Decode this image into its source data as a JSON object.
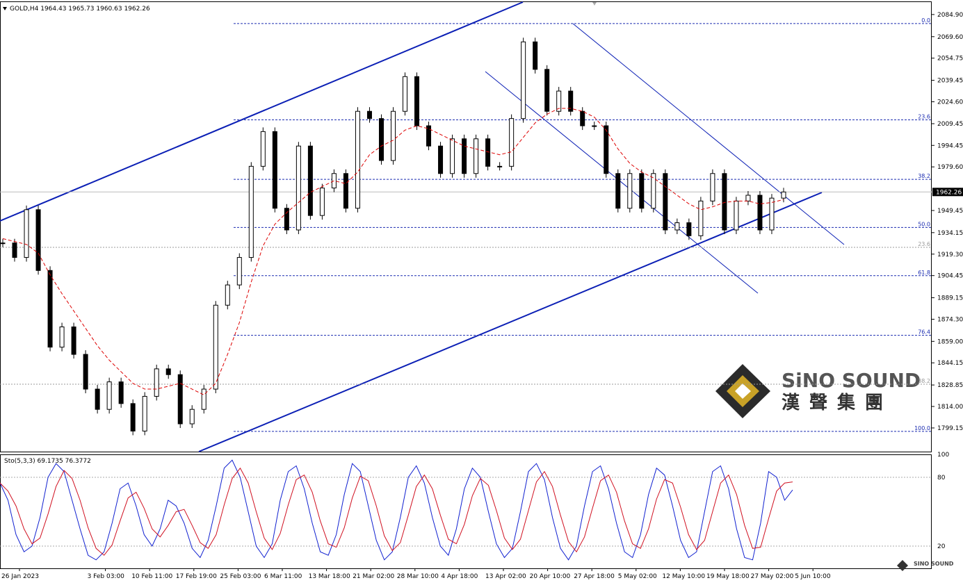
{
  "header": {
    "title": "GOLD,H4  1964.43 1965.73 1960.63 1962.26"
  },
  "price_chart": {
    "ylim": [
      1782.8,
      2093.5
    ],
    "yticks": [
      {
        "value": 2084.9,
        "label": "2084.90"
      },
      {
        "value": 2069.6,
        "label": "2069.60"
      },
      2054.75,
      2039.45,
      {
        "value": 2024.6,
        "label": "2024.60"
      },
      2009.45,
      1994.45,
      {
        "value": 1979.6,
        "label": "1979.60"
      },
      1949.45,
      1934.15,
      {
        "value": 1919.3,
        "label": "1919.30"
      },
      1904.45,
      1889.15,
      {
        "value": 1874.3,
        "label": "1874.30"
      },
      {
        "value": 1859.0,
        "label": "1859.00"
      },
      1844.15,
      1828.85,
      {
        "value": 1814.0,
        "label": "1814.00"
      },
      1799.15
    ],
    "current_price": 1962.26,
    "closes": [
      1927,
      1917,
      1950,
      1908,
      1855,
      1869,
      1850,
      1826,
      1812,
      1831,
      1816,
      1797,
      1821,
      1840,
      1836,
      1802,
      1812,
      1826,
      1884,
      1898,
      1917,
      1980,
      2004,
      1951,
      1936,
      1994,
      1946,
      1965,
      1975,
      1951,
      2018,
      2013,
      1984,
      2018,
      2042,
      2008,
      1994,
      1975,
      1999,
      1975,
      1999,
      1980,
      1980,
      2013,
      2066,
      2047,
      2018,
      2032,
      2018,
      2008,
      2008,
      1975,
      1951,
      1975,
      1951,
      1975,
      1936,
      1941,
      1932,
      1956,
      1975,
      1936,
      1956,
      1960,
      1936,
      1958,
      1962.26
    ],
    "ma": [
      1930,
      1928,
      1926,
      1920,
      1905,
      1892,
      1880,
      1868,
      1856,
      1846,
      1838,
      1830,
      1826,
      1826,
      1828,
      1830,
      1826,
      1822,
      1830,
      1850,
      1872,
      1900,
      1925,
      1940,
      1948,
      1955,
      1962,
      1966,
      1970,
      1968,
      1976,
      1988,
      1994,
      1998,
      2005,
      2008,
      2006,
      2002,
      1998,
      1994,
      1992,
      1990,
      1988,
      1990,
      2000,
      2010,
      2016,
      2020,
      2020,
      2018,
      2014,
      2005,
      1992,
      1982,
      1976,
      1972,
      1966,
      1960,
      1954,
      1950,
      1952,
      1955,
      1956,
      1956,
      1954,
      1955,
      1957
    ],
    "fib_levels": [
      {
        "label": "0.0",
        "price": 2078.7
      },
      {
        "label": "23.6",
        "price": 2012.1
      },
      {
        "label": "38.2",
        "price": 1971.0
      },
      {
        "label": "50.0",
        "price": 1937.7
      },
      {
        "label": "61.8",
        "price": 1904.4
      },
      {
        "label": "76.4",
        "price": 1863.2
      },
      {
        "label": "100.0",
        "price": 1796.8
      }
    ],
    "fib_levels_grey": [
      {
        "label": "23.6",
        "price": 1924.0
      },
      {
        "label": "38.2",
        "price": 1829.4
      }
    ]
  },
  "time_labels": [
    "26 Jan 2023",
    "3 Feb 03:00",
    "10 Feb 11:00",
    "17 Feb 19:00",
    "25 Feb 03:00",
    "6 Mar 11:00",
    "13 Mar 18:00",
    "21 Mar 02:00",
    "28 Mar 10:00",
    "4 Apr 18:00",
    "13 Apr 02:00",
    "20 Apr 10:00",
    "27 Apr 18:00",
    "5 May 02:00",
    "12 May 10:00",
    "19 May 18:00",
    "27 May 02:00",
    "5 Jun 10:00"
  ],
  "stochastic": {
    "title": "Sto(5,3,3) 69.1735 76.3772",
    "ylim": [
      0,
      100
    ],
    "yticks": [
      100,
      80,
      20
    ],
    "k": [
      75,
      60,
      30,
      15,
      20,
      45,
      80,
      92,
      85,
      60,
      35,
      12,
      8,
      15,
      40,
      70,
      75,
      55,
      30,
      20,
      35,
      60,
      55,
      40,
      18,
      10,
      25,
      55,
      88,
      95,
      80,
      50,
      20,
      10,
      22,
      60,
      85,
      90,
      70,
      40,
      15,
      12,
      30,
      65,
      92,
      85,
      55,
      25,
      8,
      15,
      45,
      80,
      90,
      75,
      45,
      20,
      12,
      35,
      70,
      88,
      80,
      50,
      22,
      10,
      18,
      50,
      85,
      92,
      78,
      45,
      18,
      8,
      20,
      55,
      85,
      90,
      70,
      40,
      15,
      10,
      30,
      65,
      88,
      82,
      55,
      25,
      10,
      15,
      50,
      85,
      90,
      70,
      35,
      10,
      8,
      40,
      85,
      80,
      60,
      69
    ],
    "d": [
      75,
      68,
      55,
      35,
      22,
      27,
      48,
      72,
      86,
      79,
      60,
      36,
      18,
      12,
      21,
      42,
      62,
      67,
      53,
      35,
      28,
      38,
      50,
      52,
      38,
      23,
      18,
      30,
      56,
      79,
      88,
      75,
      50,
      27,
      17,
      31,
      56,
      78,
      82,
      67,
      42,
      22,
      19,
      36,
      62,
      81,
      77,
      55,
      29,
      16,
      23,
      47,
      72,
      82,
      70,
      47,
      26,
      22,
      39,
      64,
      79,
      73,
      51,
      27,
      17,
      26,
      51,
      76,
      85,
      72,
      47,
      24,
      15,
      28,
      53,
      77,
      82,
      67,
      42,
      22,
      18,
      35,
      61,
      78,
      75,
      54,
      30,
      17,
      25,
      50,
      75,
      82,
      65,
      38,
      18,
      19,
      44,
      68,
      75,
      76
    ]
  },
  "logo": {
    "name": "SiNO SOUND",
    "chinese": "漢聲集團",
    "small": "SINO SOUND"
  }
}
